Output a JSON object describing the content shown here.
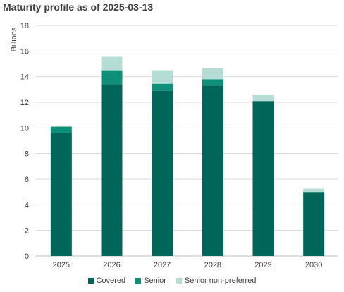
{
  "chart_data": {
    "type": "bar",
    "stacked": true,
    "title": "Maturity profile as of 2025-03-13",
    "ylabel": "Billions",
    "xlabel": "",
    "ylim": [
      0,
      18
    ],
    "yticks": [
      0,
      2,
      4,
      6,
      8,
      10,
      12,
      14,
      16,
      18
    ],
    "grid": true,
    "legend_position": "bottom",
    "categories": [
      "2025",
      "2026",
      "2027",
      "2028",
      "2029",
      "2030"
    ],
    "series": [
      {
        "name": "Covered",
        "color": "#00665a",
        "values": [
          9.6,
          13.4,
          12.9,
          13.3,
          12.1,
          5.0
        ]
      },
      {
        "name": "Senior",
        "color": "#0e8f78",
        "values": [
          0.5,
          1.1,
          0.55,
          0.5,
          0.0,
          0.0
        ]
      },
      {
        "name": "Senior non-preferred",
        "color": "#b5ddd6",
        "values": [
          0.0,
          1.05,
          1.05,
          0.85,
          0.5,
          0.25
        ]
      }
    ]
  }
}
